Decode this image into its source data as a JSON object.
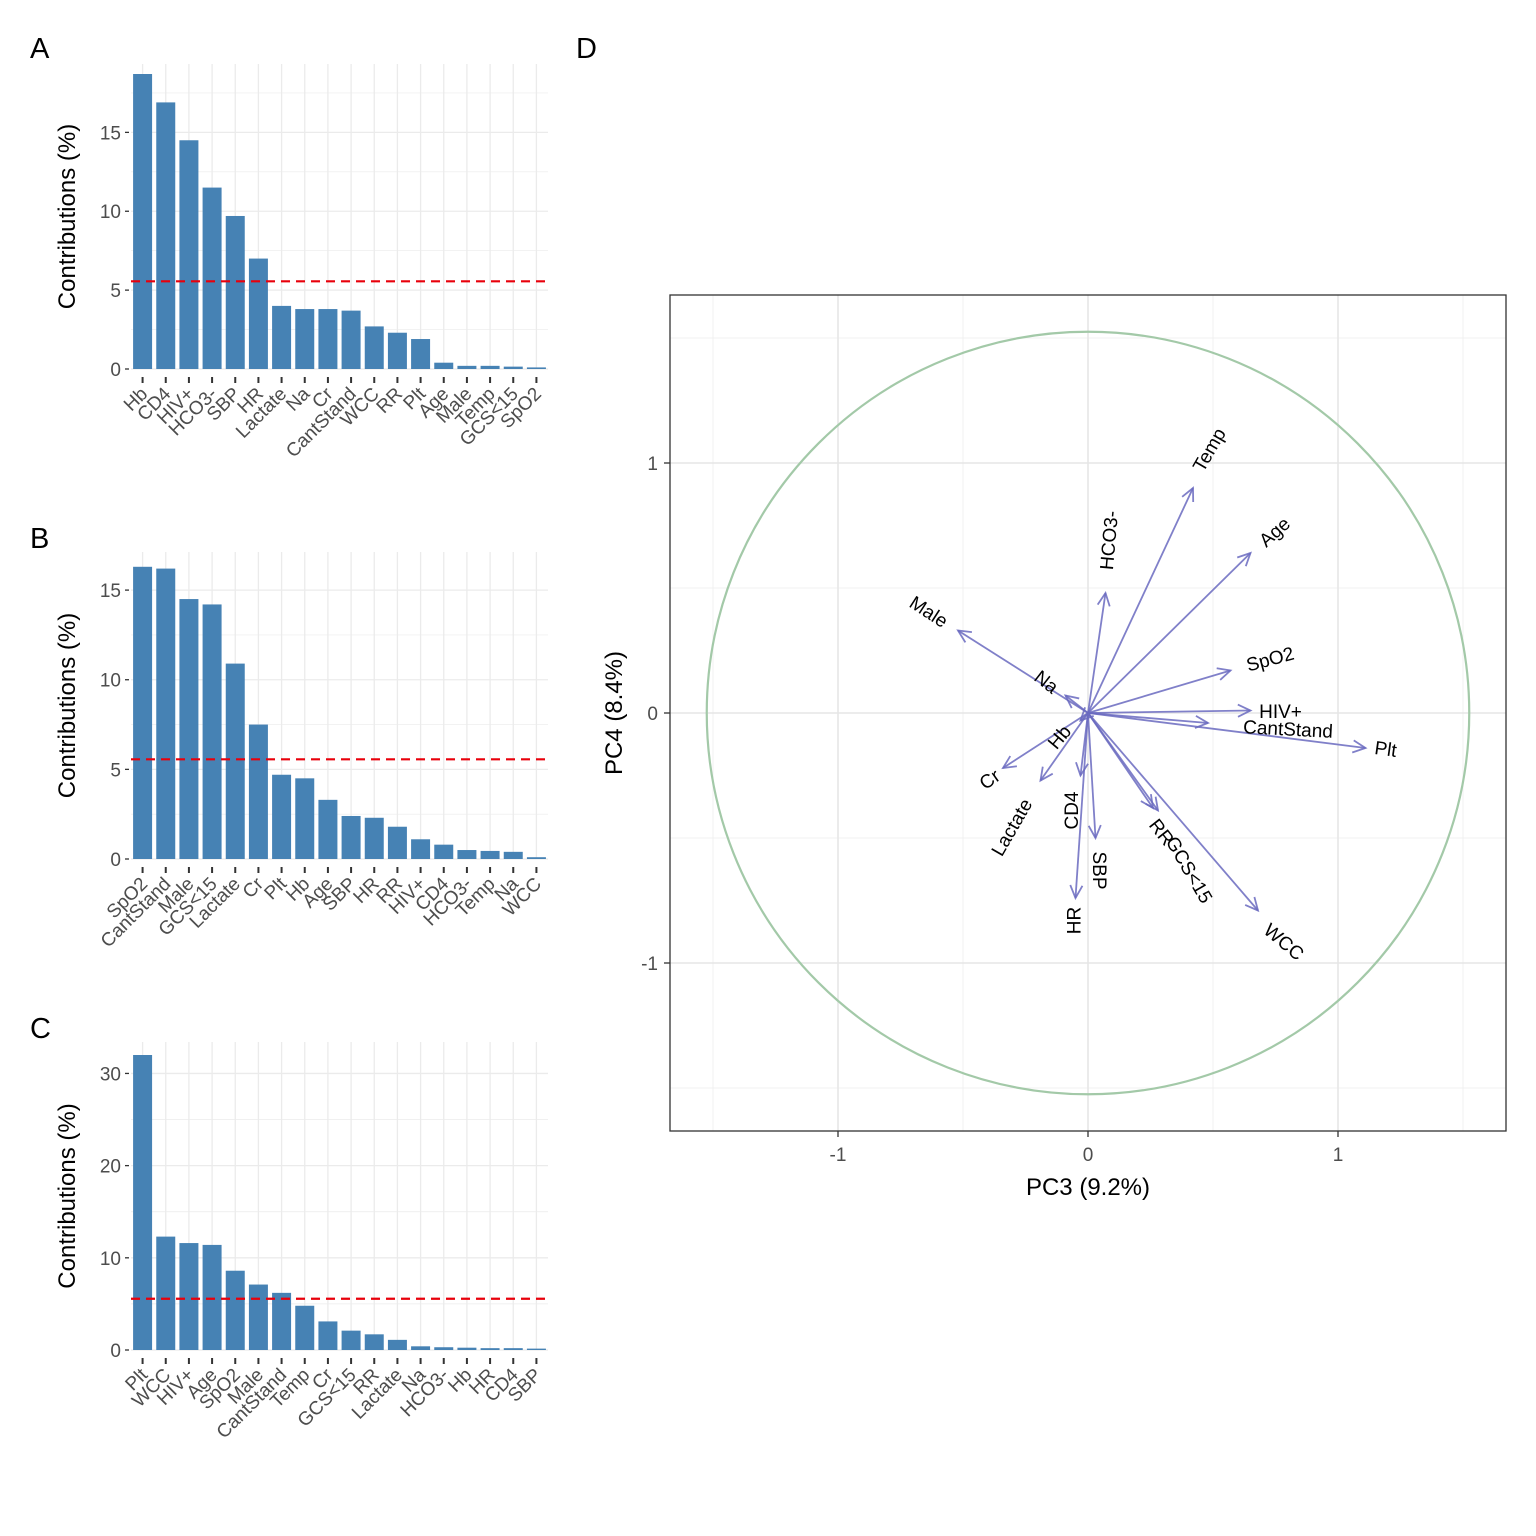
{
  "chart_data": [
    {
      "panel": "A",
      "type": "bar",
      "ylabel": "Contributions (%)",
      "ylim": [
        0,
        18.7
      ],
      "yticks": [
        0,
        5,
        10,
        15
      ],
      "reference_line": 5.56,
      "reference_color": "#e8000b",
      "bar_color": "#4682b4",
      "categories": [
        "Hb",
        "CD4",
        "HIV+",
        "HCO3-",
        "SBP",
        "HR",
        "Lactate",
        "Na",
        "Cr",
        "CantStand",
        "WCC",
        "RR",
        "Plt",
        "Age",
        "Male",
        "Temp",
        "GCS<15",
        "SpO2"
      ],
      "values": [
        18.7,
        16.9,
        14.5,
        11.5,
        9.7,
        7.0,
        4.0,
        3.8,
        3.8,
        3.7,
        2.7,
        2.3,
        1.9,
        0.4,
        0.2,
        0.2,
        0.15,
        0.1
      ]
    },
    {
      "panel": "B",
      "type": "bar",
      "ylabel": "Contributions (%)",
      "ylim": [
        0,
        16.4
      ],
      "yticks": [
        0,
        5,
        10,
        15
      ],
      "reference_line": 5.56,
      "reference_color": "#e8000b",
      "bar_color": "#4682b4",
      "categories": [
        "SpO2",
        "CantStand",
        "Male",
        "GCS<15",
        "Lactate",
        "Cr",
        "Plt",
        "Hb",
        "Age",
        "SBP",
        "HR",
        "RR",
        "HIV+",
        "CD4",
        "HCO3-",
        "Temp",
        "Na",
        "WCC"
      ],
      "values": [
        16.3,
        16.2,
        14.5,
        14.2,
        10.9,
        7.5,
        4.7,
        4.5,
        3.3,
        2.4,
        2.3,
        1.8,
        1.1,
        0.8,
        0.5,
        0.45,
        0.4,
        0.1
      ]
    },
    {
      "panel": "C",
      "type": "bar",
      "ylabel": "Contributions (%)",
      "ylim": [
        0,
        32.0
      ],
      "yticks": [
        0,
        10,
        20,
        30
      ],
      "reference_line": 5.56,
      "reference_color": "#e8000b",
      "bar_color": "#4682b4",
      "categories": [
        "Plt",
        "WCC",
        "HIV+",
        "Age",
        "SpO2",
        "Male",
        "CantStand",
        "Temp",
        "Cr",
        "GCS<15",
        "RR",
        "Lactate",
        "Na",
        "HCO3-",
        "Hb",
        "HR",
        "CD4",
        "SBP"
      ],
      "values": [
        32.0,
        12.3,
        11.6,
        11.4,
        8.6,
        7.1,
        6.2,
        4.8,
        3.1,
        2.1,
        1.7,
        1.1,
        0.4,
        0.3,
        0.25,
        0.2,
        0.2,
        0.15
      ]
    },
    {
      "panel": "D",
      "type": "scatter",
      "subtype": "pca-variable-loadings",
      "xlabel": "PC3 (9.2%)",
      "ylabel": "PC4 (8.4%)",
      "xlim": [
        -1.68,
        1.68
      ],
      "ylim": [
        -1.67,
        1.67
      ],
      "xticks": [
        -1,
        0,
        1
      ],
      "yticks": [
        -1,
        0,
        1
      ],
      "circle_radius": 1.525,
      "circle_color": "#a3c9a8",
      "arrow_color": "#6a6ac0",
      "variables": [
        {
          "name": "Temp",
          "x": 0.42,
          "y": 0.9,
          "lx": 0.49,
          "ly": 1.05,
          "angle": -60
        },
        {
          "name": "HCO3-",
          "x": 0.07,
          "y": 0.48,
          "lx": 0.09,
          "ly": 0.69,
          "angle": -85
        },
        {
          "name": "Age",
          "x": 0.65,
          "y": 0.64,
          "lx": 0.75,
          "ly": 0.72,
          "angle": -42
        },
        {
          "name": "Male",
          "x": -0.52,
          "y": 0.33,
          "lx": -0.64,
          "ly": 0.4,
          "angle": 33
        },
        {
          "name": "SpO2",
          "x": 0.57,
          "y": 0.17,
          "lx": 0.73,
          "ly": 0.21,
          "angle": -15
        },
        {
          "name": "Na",
          "x": -0.09,
          "y": 0.07,
          "lx": -0.17,
          "ly": 0.12,
          "angle": 38
        },
        {
          "name": "HIV+",
          "x": 0.65,
          "y": 0.01,
          "lx": 0.77,
          "ly": 0.0,
          "angle": 0
        },
        {
          "name": "CantStand",
          "x": 0.48,
          "y": -0.04,
          "lx": 0.8,
          "ly": -0.07,
          "angle": 3
        },
        {
          "name": "Plt",
          "x": 1.11,
          "y": -0.14,
          "lx": 1.19,
          "ly": -0.15,
          "angle": 8
        },
        {
          "name": "Hb",
          "x": -0.03,
          "y": -0.03,
          "lx": -0.11,
          "ly": -0.1,
          "angle": -50
        },
        {
          "name": "Cr",
          "x": -0.34,
          "y": -0.22,
          "lx": -0.39,
          "ly": -0.27,
          "angle": -35
        },
        {
          "name": "Lactate",
          "x": -0.19,
          "y": -0.27,
          "lx": -0.3,
          "ly": -0.46,
          "angle": -60
        },
        {
          "name": "CD4",
          "x": -0.03,
          "y": -0.25,
          "lx": -0.06,
          "ly": -0.39,
          "angle": -90
        },
        {
          "name": "SBP",
          "x": 0.03,
          "y": -0.5,
          "lx": 0.04,
          "ly": -0.63,
          "angle": 90
        },
        {
          "name": "HR",
          "x": -0.05,
          "y": -0.74,
          "lx": -0.05,
          "ly": -0.83,
          "angle": -90
        },
        {
          "name": "RR",
          "x": 0.26,
          "y": -0.38,
          "lx": 0.29,
          "ly": -0.48,
          "angle": 52
        },
        {
          "name": "GCS<15",
          "x": 0.28,
          "y": -0.39,
          "lx": 0.4,
          "ly": -0.63,
          "angle": 60
        },
        {
          "name": "WCC",
          "x": 0.68,
          "y": -0.79,
          "lx": 0.78,
          "ly": -0.92,
          "angle": 40
        }
      ]
    }
  ]
}
